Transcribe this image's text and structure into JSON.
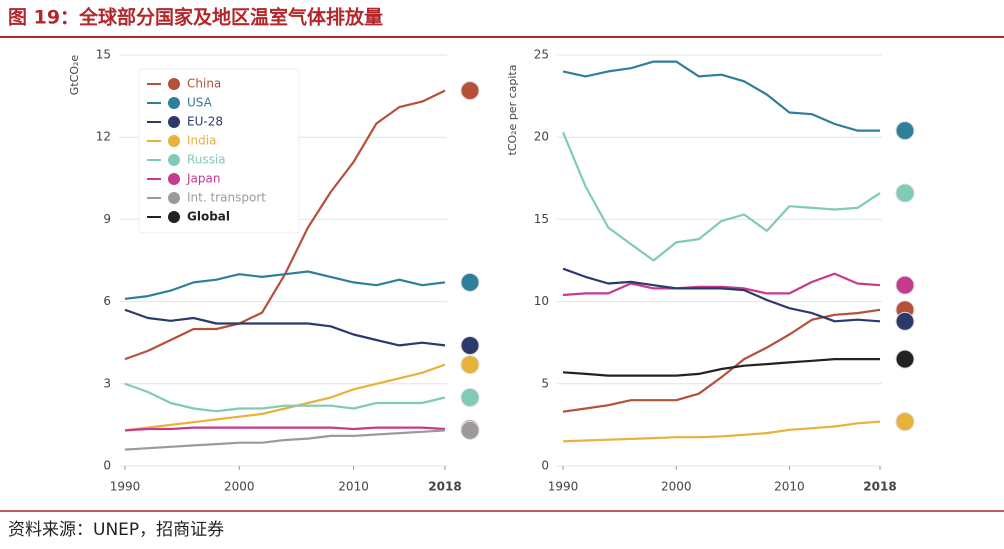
{
  "title": "图 19：全球部分国家及地区温室气体排放量",
  "source": "资料来源：UNEP，招商证券",
  "chart_data": [
    {
      "type": "line",
      "ylabel": "GtCO₂e",
      "x": [
        1990,
        1992,
        1994,
        1996,
        1998,
        2000,
        2002,
        2004,
        2006,
        2008,
        2010,
        2012,
        2014,
        2016,
        2018
      ],
      "xlim": [
        1990,
        2018
      ],
      "xticks": [
        1990,
        2000,
        2010,
        2018
      ],
      "ylim": [
        0,
        15
      ],
      "yticks": [
        0,
        3,
        6,
        9,
        12,
        15
      ],
      "grid": true,
      "legend": "upper left",
      "series": [
        {
          "name": "China",
          "color": "#b5503a",
          "values": [
            3.9,
            4.2,
            4.6,
            5.0,
            5.0,
            5.2,
            5.6,
            7.0,
            8.7,
            10.0,
            11.1,
            12.5,
            13.1,
            13.3,
            13.7
          ]
        },
        {
          "name": "USA",
          "color": "#2f7f9a",
          "values": [
            6.1,
            6.2,
            6.4,
            6.7,
            6.8,
            7.0,
            6.9,
            7.0,
            7.1,
            6.9,
            6.7,
            6.6,
            6.8,
            6.6,
            6.7
          ]
        },
        {
          "name": "EU-28",
          "color": "#2b3a6b",
          "values": [
            5.7,
            5.4,
            5.3,
            5.4,
            5.2,
            5.2,
            5.2,
            5.2,
            5.2,
            5.1,
            4.8,
            4.6,
            4.4,
            4.5,
            4.4
          ]
        },
        {
          "name": "India",
          "color": "#e8b13a",
          "values": [
            1.3,
            1.4,
            1.5,
            1.6,
            1.7,
            1.8,
            1.9,
            2.1,
            2.3,
            2.5,
            2.8,
            3.0,
            3.2,
            3.4,
            3.7
          ]
        },
        {
          "name": "Russia",
          "color": "#7fcbb6",
          "values": [
            3.0,
            2.7,
            2.3,
            2.1,
            2.0,
            2.1,
            2.1,
            2.2,
            2.2,
            2.2,
            2.1,
            2.3,
            2.3,
            2.3,
            2.5
          ]
        },
        {
          "name": "Japan",
          "color": "#c63a8f",
          "values": [
            1.3,
            1.35,
            1.35,
            1.4,
            1.4,
            1.4,
            1.4,
            1.4,
            1.4,
            1.4,
            1.35,
            1.4,
            1.4,
            1.4,
            1.35
          ]
        },
        {
          "name": "Int. transport",
          "color": "#9a9a9a",
          "values": [
            0.6,
            0.65,
            0.7,
            0.75,
            0.8,
            0.85,
            0.85,
            0.95,
            1.0,
            1.1,
            1.1,
            1.15,
            1.2,
            1.25,
            1.3
          ]
        },
        {
          "name": "Global",
          "color": "#222222",
          "values": [
            null,
            null,
            null,
            null,
            null,
            null,
            null,
            null,
            null,
            null,
            null,
            null,
            null,
            null,
            null
          ]
        }
      ]
    },
    {
      "type": "line",
      "ylabel": "tCO₂e per capita",
      "x": [
        1990,
        1992,
        1994,
        1996,
        1998,
        2000,
        2002,
        2004,
        2006,
        2008,
        2010,
        2012,
        2014,
        2016,
        2018
      ],
      "xlim": [
        1990,
        2018
      ],
      "xticks": [
        1990,
        2000,
        2010,
        2018
      ],
      "ylim": [
        0,
        25
      ],
      "yticks": [
        0,
        5,
        10,
        15,
        20,
        25
      ],
      "grid": true,
      "series": [
        {
          "color": "#2f7f9a",
          "values": [
            24.0,
            23.7,
            24.0,
            24.2,
            24.6,
            24.6,
            23.7,
            23.8,
            23.4,
            22.6,
            21.5,
            21.4,
            20.8,
            20.4,
            20.4
          ]
        },
        {
          "color": "#7fcbb6",
          "values": [
            20.3,
            17.0,
            14.5,
            13.5,
            12.5,
            13.6,
            13.8,
            14.9,
            15.3,
            14.3,
            15.8,
            15.7,
            15.6,
            15.7,
            16.6
          ]
        },
        {
          "color": "#c63a8f",
          "values": [
            10.4,
            10.5,
            10.5,
            11.1,
            10.8,
            10.8,
            10.9,
            10.9,
            10.8,
            10.5,
            10.5,
            11.2,
            11.7,
            11.1,
            11.0
          ]
        },
        {
          "color": "#b5503a",
          "values": [
            3.3,
            3.5,
            3.7,
            4.0,
            4.0,
            4.0,
            4.4,
            5.4,
            6.5,
            7.2,
            8.0,
            8.9,
            9.2,
            9.3,
            9.5
          ]
        },
        {
          "color": "#2b3a6b",
          "values": [
            12.0,
            11.5,
            11.1,
            11.2,
            11.0,
            10.8,
            10.8,
            10.8,
            10.7,
            10.1,
            9.6,
            9.3,
            8.8,
            8.9,
            8.8
          ]
        },
        {
          "color": "#222222",
          "values": [
            5.7,
            5.6,
            5.5,
            5.5,
            5.5,
            5.5,
            5.6,
            5.9,
            6.1,
            6.2,
            6.3,
            6.4,
            6.5,
            6.5,
            6.5
          ]
        },
        {
          "color": "#e8b13a",
          "values": [
            1.5,
            1.55,
            1.6,
            1.65,
            1.7,
            1.75,
            1.75,
            1.8,
            1.9,
            2.0,
            2.2,
            2.3,
            2.4,
            2.6,
            2.7
          ]
        }
      ]
    }
  ]
}
